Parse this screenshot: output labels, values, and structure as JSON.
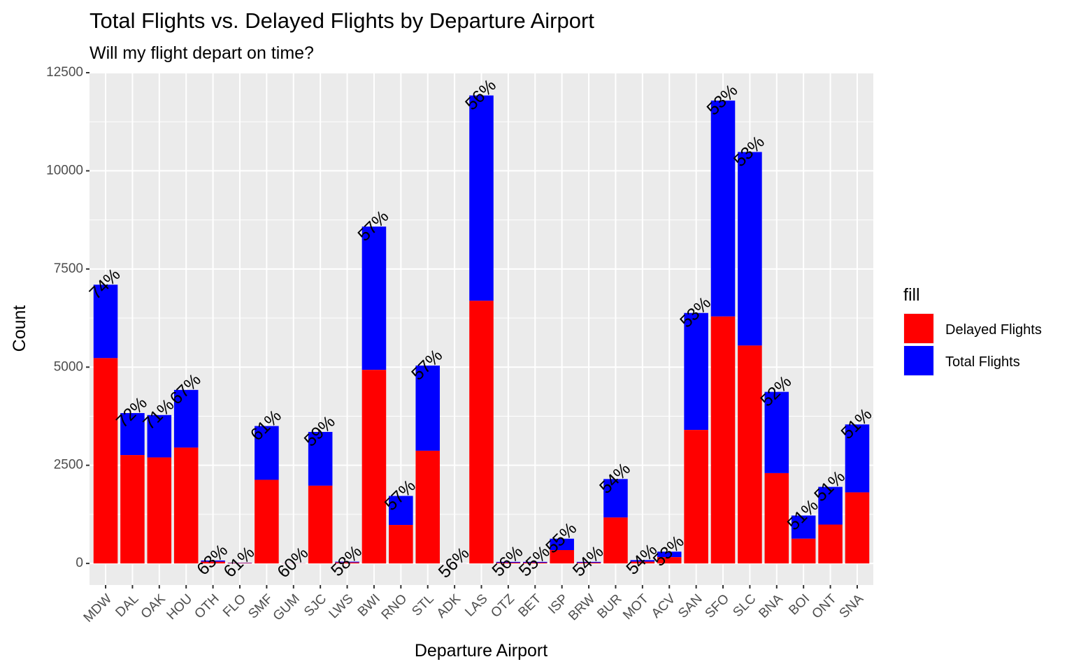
{
  "chart_data": {
    "type": "bar",
    "title": "Total Flights vs. Delayed Flights by Departure Airport",
    "subtitle": "Will my flight depart on time?",
    "xlabel": "Departure Airport",
    "ylabel": "Count",
    "ylim": [
      -550,
      12500
    ],
    "yticks": [
      0,
      2500,
      5000,
      7500,
      10000,
      12500
    ],
    "grid": true,
    "legend_position": "right",
    "legend_title": "fill",
    "colors": {
      "Delayed Flights": "#ff0000",
      "Total Flights": "#0000ff",
      "panel": "#ebebeb",
      "grid": "#ffffff"
    },
    "categories": [
      "MDW",
      "DAL",
      "OAK",
      "HOU",
      "OTH",
      "FLO",
      "SMF",
      "GUM",
      "SJC",
      "LWS",
      "BWI",
      "RNO",
      "STL",
      "ADK",
      "LAS",
      "OTZ",
      "BET",
      "ISP",
      "BRW",
      "BUR",
      "MOT",
      "ACV",
      "SAN",
      "SFO",
      "SLC",
      "BNA",
      "BOI",
      "ONT",
      "SNA"
    ],
    "series": [
      {
        "name": "Delayed Flights",
        "values": [
          5230,
          2760,
          2700,
          2950,
          45,
          10,
          2130,
          3,
          1980,
          25,
          4930,
          980,
          2870,
          1,
          6690,
          20,
          20,
          340,
          20,
          1170,
          45,
          160,
          3400,
          6290,
          5550,
          2300,
          630,
          990,
          1810
        ]
      },
      {
        "name": "Total Flights",
        "values": [
          7100,
          3830,
          3780,
          4420,
          75,
          18,
          3500,
          5,
          3350,
          45,
          8580,
          1720,
          5040,
          2,
          11920,
          40,
          40,
          630,
          40,
          2150,
          85,
          300,
          6380,
          11790,
          10480,
          4370,
          1220,
          1950,
          3540
        ]
      }
    ],
    "labels": [
      "74%",
      "72%",
      "71%",
      "67%",
      "63%",
      "61%",
      "61%",
      "60%",
      "59%",
      "58%",
      "57%",
      "57%",
      "57%",
      "56%",
      "56%",
      "56%",
      "55%",
      "55%",
      "54%",
      "54%",
      "54%",
      "53%",
      "53%",
      "53%",
      "53%",
      "52%",
      "51%",
      "51%",
      "51%"
    ]
  }
}
